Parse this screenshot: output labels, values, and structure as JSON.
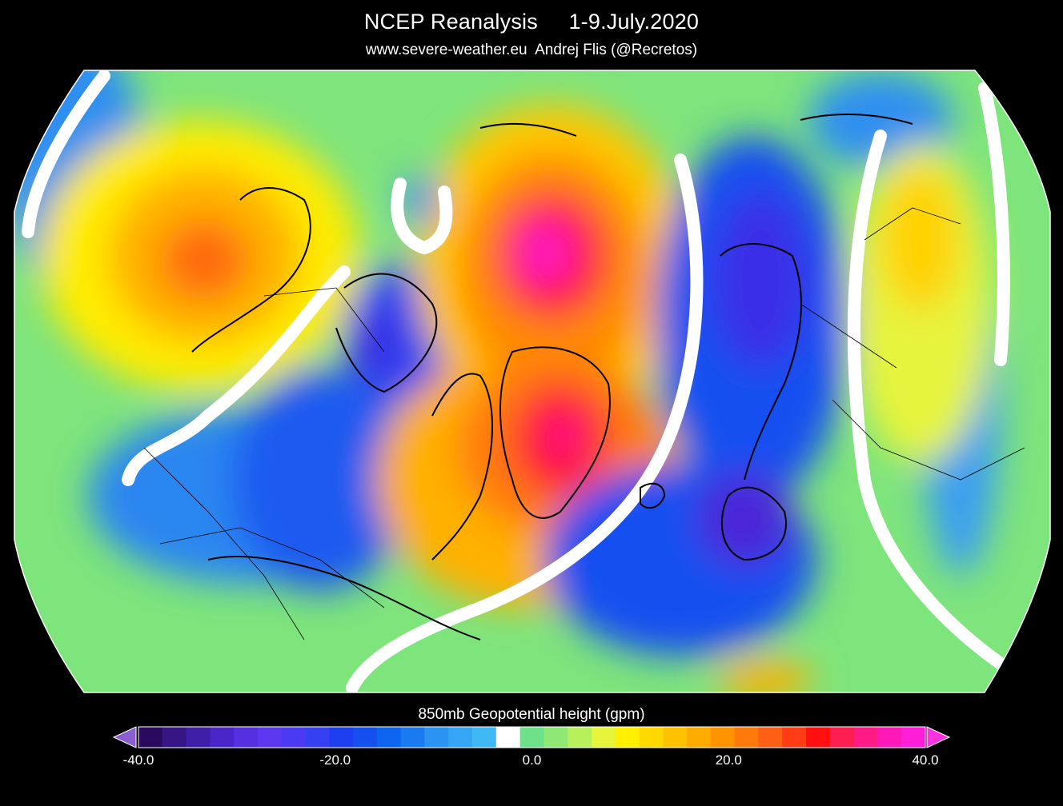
{
  "header": {
    "title": "NCEP Reanalysis     1-9.July.2020",
    "subtitle": "www.severe-weather.eu  Andrej Flis (@Recretos)"
  },
  "legend": {
    "title": "850mb Geopotential height (gpm)",
    "min": -40,
    "max": 40,
    "step": 2.5,
    "tick_labels": [
      "-40.0",
      "-20.0",
      "0.0",
      "20.0",
      "40.0"
    ],
    "tick_values": [
      -40,
      -20,
      0,
      20,
      40
    ],
    "colors": [
      "#2a0a5e",
      "#361585",
      "#3f1ea8",
      "#4a26c9",
      "#5530e0",
      "#5c37f0",
      "#4b3af4",
      "#3440f2",
      "#1e3ff0",
      "#1450f0",
      "#0d64ee",
      "#1a7bf0",
      "#2b93f2",
      "#35a6f4",
      "#40b8f5",
      "#ffffff",
      "#6fe08a",
      "#8ee873",
      "#b7f05a",
      "#e6f43c",
      "#fff000",
      "#ffd800",
      "#ffc200",
      "#ffab00",
      "#ff9400",
      "#ff7a0a",
      "#ff5f14",
      "#ff3c14",
      "#ff0f0f",
      "#ff1e50",
      "#ff1a86",
      "#ff18b8",
      "#ff1fd8"
    ],
    "arrow_low_color": "#8a5ecf",
    "arrow_high_color": "#ff32e0"
  },
  "map": {
    "projection": "northern hemisphere",
    "field": "850mb geopotential height anomaly",
    "features": [
      {
        "name": "anomaly-high-greenland",
        "value": 40
      },
      {
        "name": "anomaly-high-siberia",
        "value": 38
      },
      {
        "name": "anomaly-low-scandinavia",
        "value": -30
      },
      {
        "name": "anomaly-low-hudson",
        "value": -25
      }
    ]
  }
}
